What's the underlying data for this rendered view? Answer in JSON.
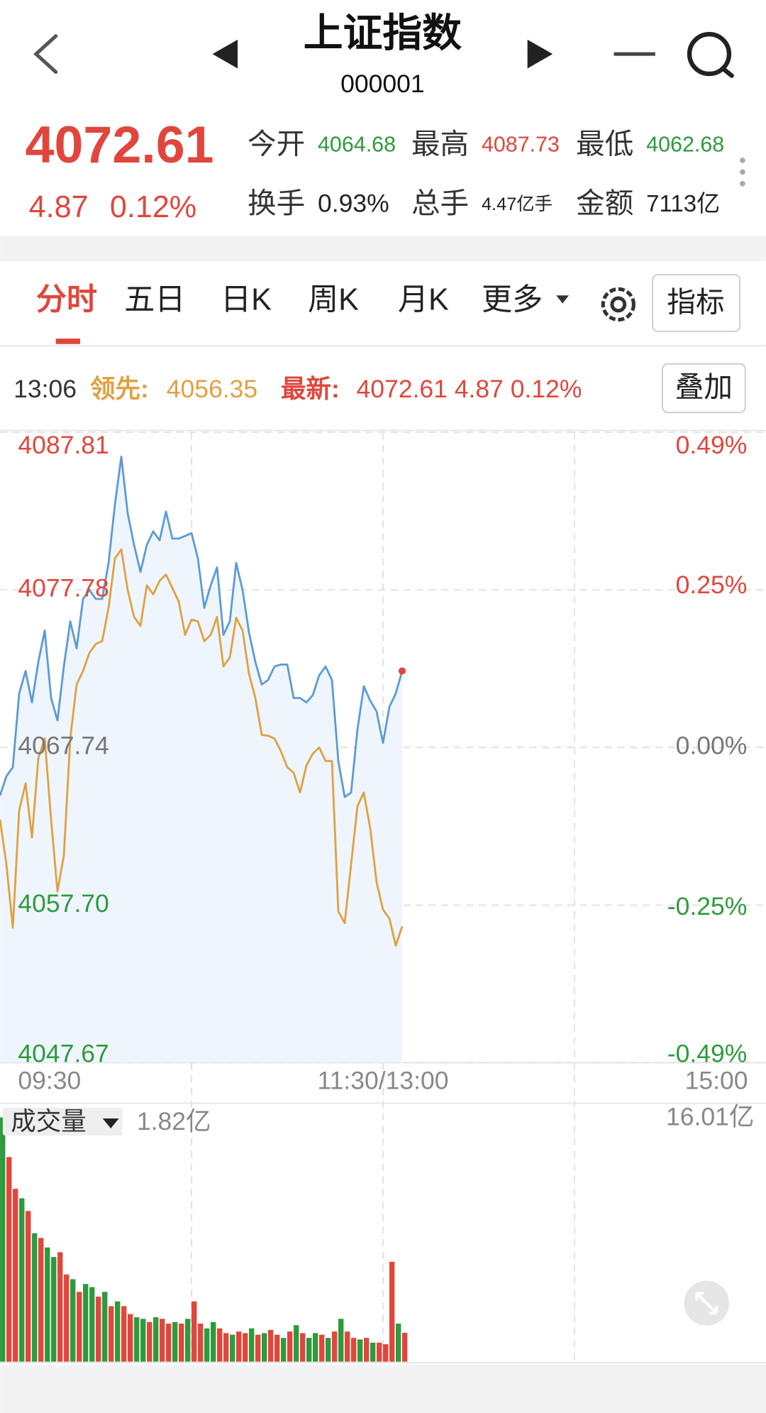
{
  "header": {
    "title": "上证指数",
    "code": "000001"
  },
  "quote": {
    "price": "4072.61",
    "change": "4.87",
    "change_pct": "0.12%",
    "stats": [
      {
        "label": "今开",
        "value": "4064.68"
      },
      {
        "label": "最高",
        "value": "4087.73"
      },
      {
        "label": "最低",
        "value": "4062.68"
      },
      {
        "label": "换手",
        "value": "0.93%"
      },
      {
        "label": "总手",
        "value": "4.47亿手"
      },
      {
        "label": "金额",
        "value": "7113亿"
      }
    ]
  },
  "tabs": [
    "分时",
    "五日",
    "日K",
    "周K",
    "月K",
    "更多"
  ],
  "indicator_button": "指标",
  "info": {
    "time": "13:06",
    "lead_value": "4056.35",
    "latest_value": "4072.61 4.87 0.12%",
    "overlay_button": "叠加"
  },
  "chart_data": [
    {
      "type": "line",
      "x": [
        0,
        2,
        4,
        6,
        8,
        10,
        12,
        14,
        16,
        18,
        20,
        22,
        24,
        26,
        28,
        30,
        32,
        34,
        36,
        38,
        40,
        42,
        44,
        46,
        48,
        50,
        52,
        54,
        56,
        58,
        60,
        62,
        64,
        66,
        68,
        70,
        72,
        74,
        76,
        78,
        80,
        82,
        84,
        86,
        88,
        90,
        92,
        94,
        96,
        98,
        100,
        102,
        104,
        106,
        108,
        110,
        112,
        114,
        116,
        118,
        120,
        122,
        124,
        126
      ],
      "series": [
        {
          "name": "最新:",
          "color": "#5b9bd5",
          "values": [
            4064.68,
            4065.91,
            4066.48,
            4071.18,
            4072.61,
            4070.61,
            4073.19,
            4075.19,
            4070.89,
            4069.46,
            4072.9,
            4075.77,
            4074.05,
            4077.2,
            4077.77,
            4077.2,
            4077.2,
            4079.49,
            4083.22,
            4086.26,
            4082.65,
            4080.64,
            4078.92,
            4080.64,
            4081.5,
            4080.93,
            4082.76,
            4081.04,
            4081.04,
            4081.21,
            4081.39,
            4079.78,
            4076.63,
            4078.06,
            4079.21,
            4074.91,
            4075.77,
            4079.49,
            4077.77,
            4075.08,
            4073.19,
            4071.75,
            4072.04,
            4072.9,
            4073.02,
            4073.02,
            4070.89,
            4070.89,
            4070.61,
            4071.07,
            4072.33,
            4072.9,
            4072.04,
            4066.88,
            4064.59,
            4064.87,
            4068.89,
            4071.64,
            4070.72,
            4070.03,
            4068.03,
            4070.32,
            4071.18,
            4072.61
          ]
        },
        {
          "name": "领先:",
          "color": "#e0a040",
          "values": [
            4063.15,
            4060.29,
            4056.27,
            4063.73,
            4065.45,
            4062.01,
            4067.05,
            4068.31,
            4063.15,
            4058.57,
            4060.86,
            4068.31,
            4071.75,
            4072.61,
            4073.76,
            4074.33,
            4074.51,
            4076.63,
            4079.78,
            4080.35,
            4077.77,
            4076.05,
            4075.48,
            4078.06,
            4077.49,
            4078.35,
            4078.75,
            4077.89,
            4077.03,
            4074.91,
            4075.88,
            4075.77,
            4074.51,
            4074.91,
            4076.05,
            4072.9,
            4073.47,
            4076.0,
            4075.19,
            4072.44,
            4070.89,
            4068.54,
            4068.49,
            4068.31,
            4067.51,
            4066.48,
            4066.13,
            4064.87,
            4066.59,
            4067.34,
            4067.74,
            4066.88,
            4066.88,
            4057.3,
            4056.56,
            4060.29,
            4064.01,
            4064.87,
            4062.58,
            4059.14,
            4057.42,
            4056.85,
            4055.13,
            4056.35
          ]
        }
      ],
      "xlim": [
        0,
        240
      ],
      "xticks": [
        {
          "value": 0,
          "label": "09:30"
        },
        {
          "value": 120,
          "label": "11:30/13:00"
        },
        {
          "value": 240,
          "label": "15:00"
        }
      ],
      "minor_xticks": [
        60,
        180
      ],
      "ylim": [
        4047.67,
        4087.81
      ],
      "yticks": [
        4087.81,
        4077.78,
        4067.74,
        {
          "value": 4057.7,
          "label": "4057.70"
        },
        4047.67
      ],
      "y2lim": [
        -0.49,
        0.49
      ],
      "y2ticks": [
        {
          "value": 0.49,
          "label": "0.49%"
        },
        {
          "value": 0.25,
          "label": "0.25%"
        },
        {
          "value": 0,
          "label": "0.00%"
        },
        {
          "value": -0.25,
          "label": "-0.25%"
        },
        {
          "value": -0.49,
          "label": "-0.49%"
        }
      ],
      "grid": true,
      "area_fill": "#eef5fc",
      "last_point_color": "#e0463c"
    },
    {
      "type": "bar",
      "title": "成交量",
      "annotation": "1.82亿",
      "x": [
        0,
        2,
        4,
        6,
        8,
        10,
        12,
        14,
        16,
        18,
        20,
        22,
        24,
        26,
        28,
        30,
        32,
        34,
        36,
        38,
        40,
        42,
        44,
        46,
        48,
        50,
        52,
        54,
        56,
        58,
        60,
        62,
        64,
        66,
        68,
        70,
        72,
        74,
        76,
        78,
        80,
        82,
        84,
        86,
        88,
        90,
        92,
        94,
        96,
        98,
        100,
        102,
        104,
        106,
        108,
        110,
        112,
        114,
        116,
        118,
        120,
        122,
        124,
        126
      ],
      "values": [
        15.4,
        12.9,
        10.9,
        10.3,
        9.5,
        8.1,
        7.8,
        7.2,
        6.6,
        6.9,
        5.5,
        5.2,
        4.4,
        4.9,
        4.7,
        4.1,
        4.4,
        3.5,
        3.8,
        3.5,
        3.0,
        2.8,
        2.7,
        2.5,
        2.8,
        2.7,
        2.4,
        2.5,
        2.4,
        2.7,
        3.8,
        2.4,
        2.1,
        2.5,
        2.1,
        1.8,
        1.7,
        1.9,
        1.8,
        2.1,
        1.7,
        1.8,
        2.0,
        1.7,
        1.5,
        1.9,
        2.3,
        1.8,
        1.5,
        1.8,
        1.7,
        1.5,
        1.9,
        2.7,
        1.9,
        1.5,
        1.4,
        1.5,
        1.2,
        1.2,
        1.1,
        6.3,
        2.4,
        1.82
      ],
      "colors": [
        "#2e9a3c",
        "#e0463c",
        "#e0463c",
        "#2e9a3c",
        "#e0463c",
        "#2e9a3c",
        "#e0463c",
        "#2e9a3c",
        "#2e9a3c",
        "#e0463c",
        "#e0463c",
        "#2e9a3c",
        "#e0463c",
        "#2e9a3c",
        "#2e9a3c",
        "#e0463c",
        "#2e9a3c",
        "#e0463c",
        "#2e9a3c",
        "#e0463c",
        "#e0463c",
        "#2e9a3c",
        "#2e9a3c",
        "#e0463c",
        "#2e9a3c",
        "#e0463c",
        "#e0463c",
        "#2e9a3c",
        "#e0463c",
        "#2e9a3c",
        "#e0463c",
        "#e0463c",
        "#2e9a3c",
        "#2e9a3c",
        "#e0463c",
        "#e0463c",
        "#2e9a3c",
        "#e0463c",
        "#e0463c",
        "#2e9a3c",
        "#e0463c",
        "#2e9a3c",
        "#e0463c",
        "#e0463c",
        "#2e9a3c",
        "#e0463c",
        "#2e9a3c",
        "#e0463c",
        "#2e9a3c",
        "#2e9a3c",
        "#e0463c",
        "#2e9a3c",
        "#e0463c",
        "#2e9a3c",
        "#e0463c",
        "#e0463c",
        "#2e9a3c",
        "#e0463c",
        "#2e9a3c",
        "#e0463c",
        "#e0463c",
        "#e0463c",
        "#2e9a3c",
        "#e0463c"
      ],
      "xlim": [
        0,
        240
      ],
      "ylim": [
        0,
        16.01
      ],
      "yticks": [
        {
          "value": 16.01,
          "label": "16.01亿"
        }
      ]
    }
  ]
}
